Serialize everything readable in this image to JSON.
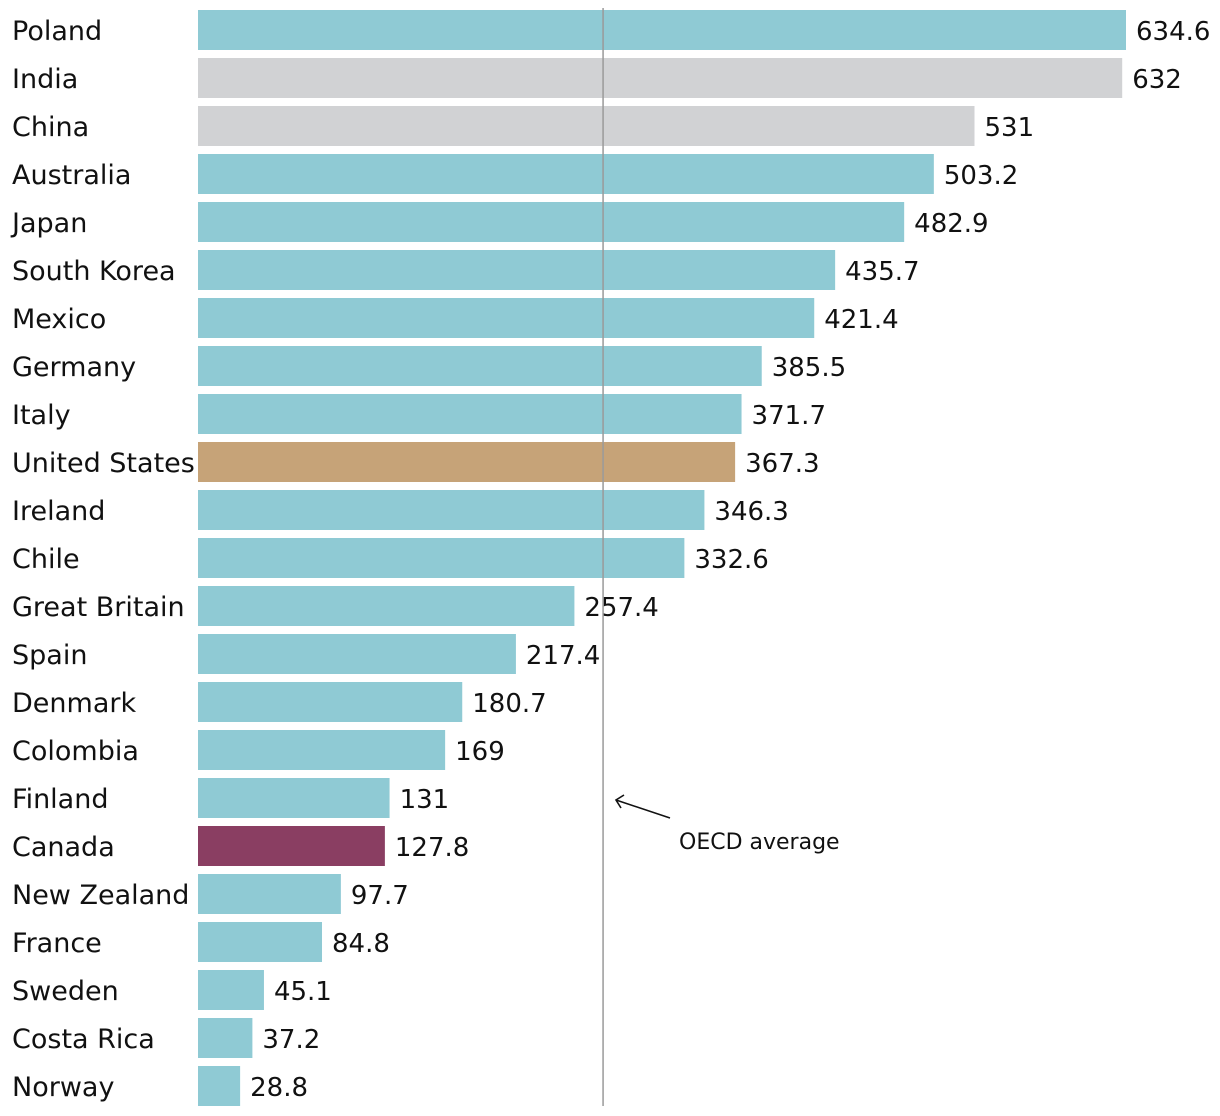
{
  "chart_data": {
    "type": "bar",
    "orientation": "horizontal",
    "categories": [
      "Poland",
      "India",
      "China",
      "Australia",
      "Japan",
      "South Korea",
      "Mexico",
      "Germany",
      "Italy",
      "United States",
      "Ireland",
      "Chile",
      "Great Britain",
      "Spain",
      "Denmark",
      "Colombia",
      "Finland",
      "Canada",
      "New Zealand",
      "France",
      "Sweden",
      "Costa Rica",
      "Norway"
    ],
    "values": [
      634.6,
      632,
      531,
      503.2,
      482.9,
      435.7,
      421.4,
      385.5,
      371.7,
      367.3,
      346.3,
      332.6,
      257.4,
      217.4,
      180.7,
      169,
      131,
      127.8,
      97.7,
      84.8,
      45.1,
      37.2,
      28.8
    ],
    "value_labels": [
      "634.6",
      "632",
      "531",
      "503.2",
      "482.9",
      "435.7",
      "421.4",
      "385.5",
      "371.7",
      "367.3",
      "346.3",
      "332.6",
      "257.4",
      "217.4",
      "180.7",
      "169",
      "131",
      "127.8",
      "97.7",
      "84.8",
      "45.1",
      "37.2",
      "28.8"
    ],
    "groups": [
      "oecd",
      "nonoecd",
      "nonoecd",
      "oecd",
      "oecd",
      "oecd",
      "oecd",
      "oecd",
      "oecd",
      "us",
      "oecd",
      "oecd",
      "oecd",
      "oecd",
      "oecd",
      "oecd",
      "oecd",
      "canada",
      "oecd",
      "oecd",
      "oecd",
      "oecd",
      "oecd"
    ],
    "colors": {
      "oecd": "#8fcad4",
      "nonoecd": "#d1d2d4",
      "us": "#c6a378",
      "canada": "#8a3e62",
      "reference": "#9a9a9a"
    },
    "xlim": [
      0,
      634.6
    ],
    "grid": false,
    "reference_line": {
      "value": 277,
      "label": "OECD average"
    },
    "title": "",
    "xlabel": "",
    "ylabel": ""
  }
}
